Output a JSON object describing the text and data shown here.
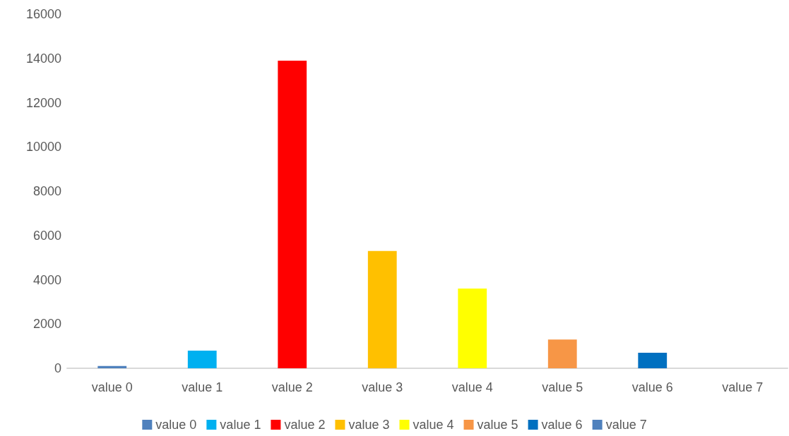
{
  "chart_data": {
    "type": "bar",
    "stacked": true,
    "categories": [
      "value 0",
      "value 1",
      "value 2",
      "value 3",
      "value 4",
      "value 5",
      "value 6",
      "value 7"
    ],
    "series": [
      {
        "name": "value 0",
        "color": "#4f81bd",
        "values": [
          100,
          null,
          null,
          null,
          null,
          null,
          null,
          null
        ]
      },
      {
        "name": "value 1",
        "color": "#00b0f0",
        "values": [
          null,
          800,
          null,
          null,
          null,
          null,
          null,
          null
        ]
      },
      {
        "name": "value 2",
        "color": "#ff0000",
        "values": [
          null,
          null,
          13900,
          null,
          null,
          null,
          null,
          null
        ]
      },
      {
        "name": "value 3",
        "color": "#ffc000",
        "values": [
          null,
          null,
          null,
          5300,
          null,
          null,
          null,
          null
        ]
      },
      {
        "name": "value 4",
        "color": "#ffff00",
        "values": [
          null,
          null,
          null,
          null,
          3600,
          null,
          null,
          null
        ]
      },
      {
        "name": "value 5",
        "color": "#f79646",
        "values": [
          null,
          null,
          null,
          null,
          null,
          1300,
          null,
          null
        ]
      },
      {
        "name": "value 6",
        "color": "#0070c0",
        "values": [
          null,
          null,
          null,
          null,
          null,
          null,
          700,
          null
        ]
      },
      {
        "name": "value 7",
        "color": "#4f81bd",
        "values": [
          null,
          null,
          null,
          null,
          null,
          null,
          null,
          0
        ]
      }
    ],
    "ylim": [
      0,
      16000
    ],
    "yticks": [
      0,
      2000,
      4000,
      6000,
      8000,
      10000,
      12000,
      14000,
      16000
    ],
    "grid": false,
    "legend": "bottom"
  }
}
